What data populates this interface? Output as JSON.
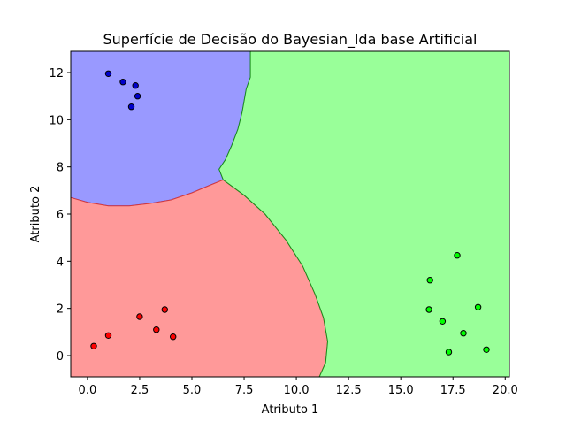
{
  "chart_data": {
    "type": "scatter",
    "title": "Superfície de Decisão do Bayesian_lda base Artificial",
    "xlabel": "Atributo 1",
    "ylabel": "Atributo 2",
    "xlim": [
      -0.8,
      20.2
    ],
    "ylim": [
      -0.9,
      12.9
    ],
    "xticks": [
      "0.0",
      "2.5",
      "5.0",
      "7.5",
      "10.0",
      "12.5",
      "15.0",
      "17.5",
      "20.0"
    ],
    "xtick_values": [
      0,
      2.5,
      5,
      7.5,
      10,
      12.5,
      15,
      17.5,
      20
    ],
    "yticks": [
      "0",
      "2",
      "4",
      "6",
      "8",
      "10",
      "12"
    ],
    "ytick_values": [
      0,
      2,
      4,
      6,
      8,
      10,
      12
    ],
    "grid": false,
    "regions": [
      {
        "color": "#9999ff",
        "edge": "#3333ff",
        "boundary": [
          [
            -0.8,
            12.9
          ],
          [
            7.8,
            12.9
          ],
          [
            7.8,
            11.8
          ],
          [
            7.6,
            11.3
          ],
          [
            7.4,
            10.3
          ],
          [
            7.2,
            9.6
          ],
          [
            6.9,
            8.9
          ],
          [
            6.6,
            8.3
          ],
          [
            6.3,
            7.9
          ],
          [
            6.5,
            7.45
          ],
          [
            5.8,
            7.2
          ],
          [
            5.0,
            6.9
          ],
          [
            4.0,
            6.6
          ],
          [
            3.0,
            6.45
          ],
          [
            2.0,
            6.35
          ],
          [
            1.0,
            6.35
          ],
          [
            0.0,
            6.5
          ],
          [
            -0.8,
            6.7
          ]
        ]
      },
      {
        "color": "#ff9999",
        "edge": "#d43a3a",
        "boundary": [
          [
            -0.8,
            6.7
          ],
          [
            0.0,
            6.5
          ],
          [
            1.0,
            6.35
          ],
          [
            2.0,
            6.35
          ],
          [
            3.0,
            6.45
          ],
          [
            4.0,
            6.6
          ],
          [
            5.0,
            6.9
          ],
          [
            5.8,
            7.2
          ],
          [
            6.5,
            7.45
          ],
          [
            7.5,
            6.8
          ],
          [
            8.5,
            6.0
          ],
          [
            9.5,
            4.9
          ],
          [
            10.3,
            3.8
          ],
          [
            10.9,
            2.6
          ],
          [
            11.3,
            1.6
          ],
          [
            11.5,
            0.6
          ],
          [
            11.4,
            -0.3
          ],
          [
            11.1,
            -0.9
          ],
          [
            -0.8,
            -0.9
          ]
        ]
      },
      {
        "color": "#99ff99",
        "edge": "#1a8a1a",
        "boundary": [
          [
            7.8,
            12.9
          ],
          [
            20.2,
            12.9
          ],
          [
            20.2,
            -0.9
          ],
          [
            11.1,
            -0.9
          ],
          [
            11.4,
            -0.3
          ],
          [
            11.5,
            0.6
          ],
          [
            11.3,
            1.6
          ],
          [
            10.9,
            2.6
          ],
          [
            10.3,
            3.8
          ],
          [
            9.5,
            4.9
          ],
          [
            8.5,
            6.0
          ],
          [
            7.5,
            6.8
          ],
          [
            6.5,
            7.45
          ],
          [
            6.3,
            7.9
          ],
          [
            6.6,
            8.3
          ],
          [
            6.9,
            8.9
          ],
          [
            7.2,
            9.6
          ],
          [
            7.4,
            10.3
          ],
          [
            7.6,
            11.3
          ],
          [
            7.8,
            11.8
          ]
        ]
      }
    ],
    "series": [
      {
        "color": "#0000cc",
        "x": [
          1.0,
          1.7,
          2.3,
          2.4,
          2.1
        ],
        "y": [
          11.95,
          11.6,
          11.45,
          11.0,
          10.55
        ]
      },
      {
        "color": "#ff0000",
        "x": [
          0.3,
          1.0,
          2.5,
          3.7,
          3.3,
          4.1
        ],
        "y": [
          0.4,
          0.85,
          1.65,
          1.95,
          1.1,
          0.8
        ]
      },
      {
        "color": "#00ff00",
        "x": [
          17.7,
          16.4,
          16.35,
          17.0,
          18.7,
          18.0,
          17.3,
          19.1
        ],
        "y": [
          4.25,
          3.2,
          1.95,
          1.45,
          2.05,
          0.95,
          0.15,
          0.25
        ]
      }
    ]
  }
}
